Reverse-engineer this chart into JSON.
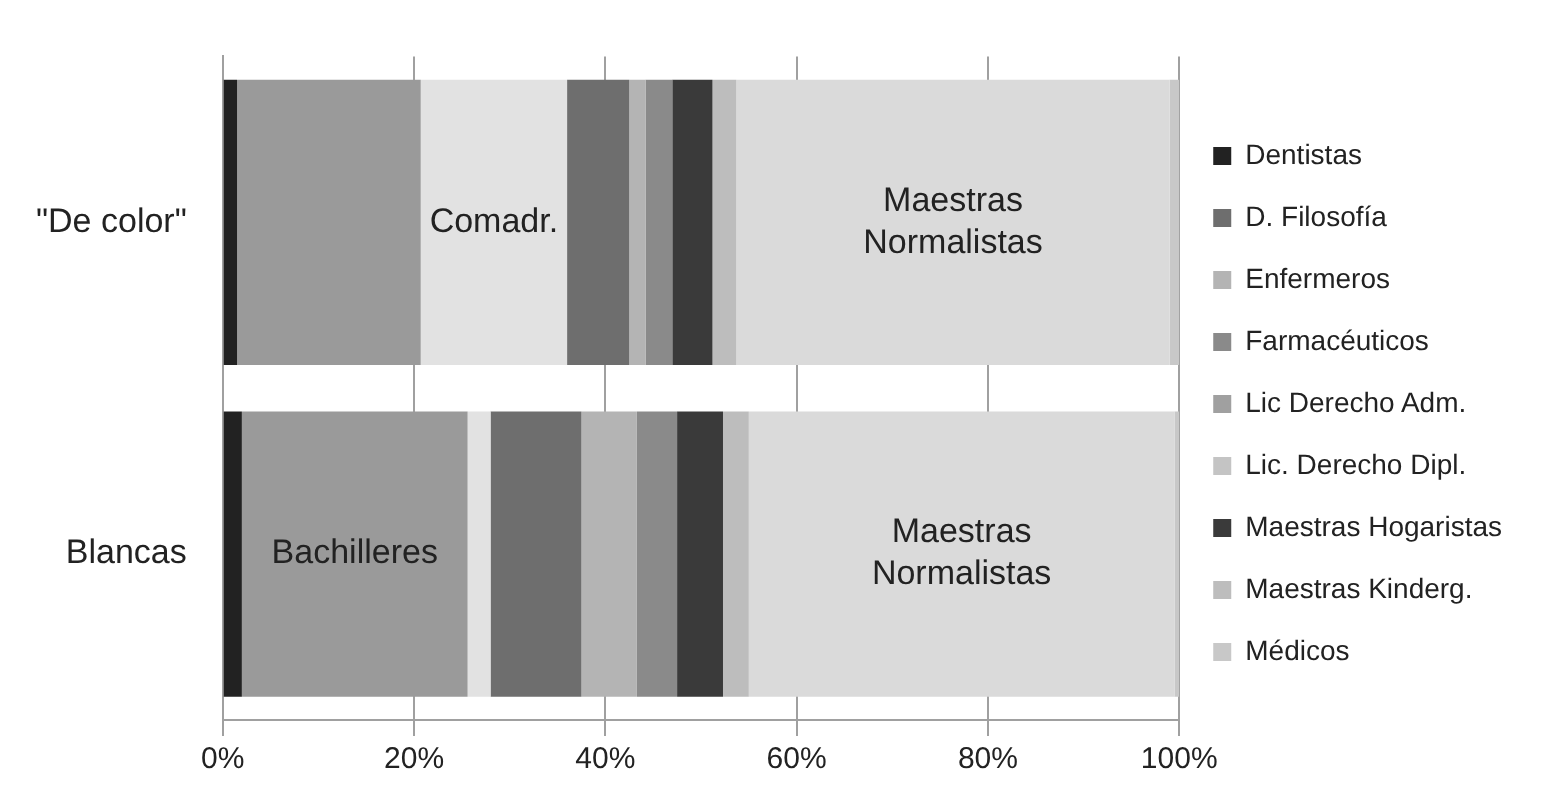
{
  "chart_data": {
    "type": "bar",
    "orientation": "horizontal",
    "stacked": true,
    "categories": [
      "\"De color\"",
      "Blancas"
    ],
    "series": [
      {
        "name": "Dentistas",
        "color": "#222222",
        "values": [
          1.5,
          2
        ]
      },
      {
        "color": "#9a9a9a",
        "values": [
          19.2,
          23.6
        ],
        "value_labels": [
          null,
          "Bachilleres"
        ]
      },
      {
        "color": "#e2e2e2",
        "values": [
          15.3,
          2.4
        ],
        "value_labels": [
          "Comadr.",
          null
        ]
      },
      {
        "name": "D. Filosofía",
        "color": "#6e6e6e",
        "values": [
          6.5,
          9.5
        ]
      },
      {
        "name": "Enfermeros",
        "color": "#b4b4b4",
        "values": [
          1.7,
          5.8
        ]
      },
      {
        "name": "Farmacéuticos",
        "color": "#8a8a8a",
        "values": [
          2.8,
          4.2
        ]
      },
      {
        "name": "Lic Derecho Adm.",
        "color": "#a0a0a0",
        "values": [
          null,
          null
        ]
      },
      {
        "name": "Lic. Derecho Dipl.",
        "color": "#c4c4c4",
        "values": [
          null,
          null
        ]
      },
      {
        "name": "Maestras Hogaristas",
        "color": "#3a3a3a",
        "values": [
          4.2,
          4.8
        ]
      },
      {
        "name": "Maestras Kinderg.",
        "color": "#bdbdbd",
        "values": [
          2.5,
          2.7
        ]
      },
      {
        "color": "#dadada",
        "values": [
          45.3,
          44.5
        ],
        "value_labels": [
          "Maestras Normalistas",
          "Maestras Normalistas"
        ]
      },
      {
        "name": "Médicos",
        "color": "#c8c8c8",
        "values": [
          1,
          0.5
        ]
      }
    ],
    "xlim": [
      0,
      100
    ],
    "xticks": [
      {
        "value": 0,
        "label": "0%"
      },
      {
        "value": 20,
        "label": "20%"
      },
      {
        "value": 40,
        "label": "40%"
      },
      {
        "value": 60,
        "label": "60%"
      },
      {
        "value": 80,
        "label": "80%"
      },
      {
        "value": 100,
        "label": "100%"
      }
    ],
    "grid": "x",
    "legend": "right"
  }
}
